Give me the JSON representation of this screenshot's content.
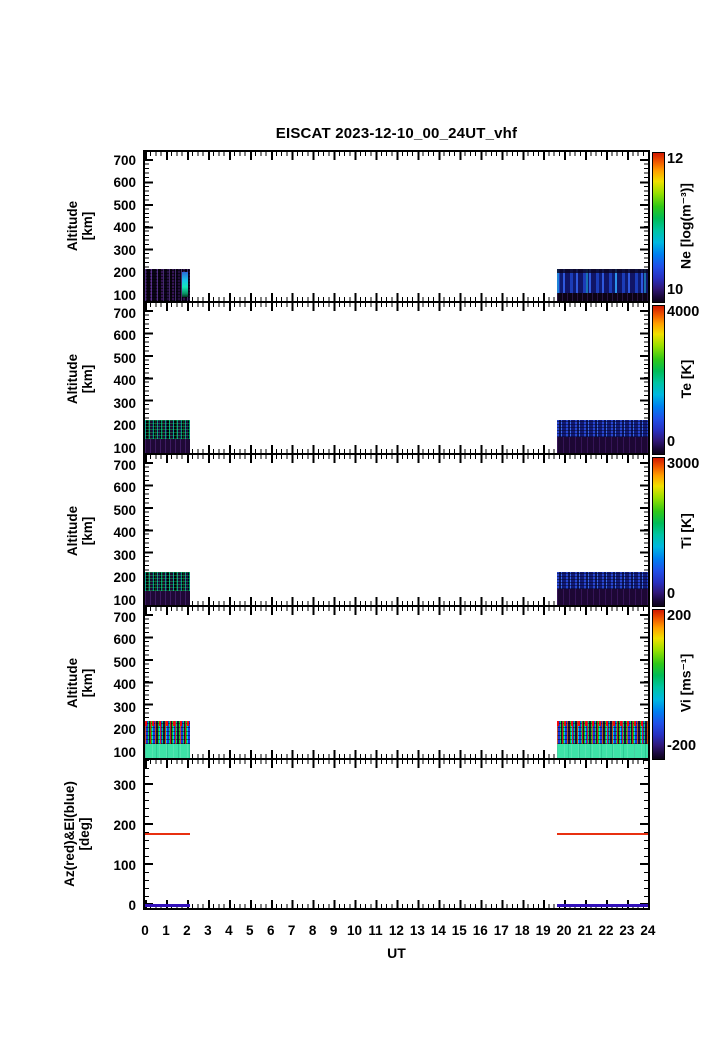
{
  "title": "EISCAT 2023-12-10_00_24UT_vhf",
  "x_axis": {
    "label": "UT",
    "ticks": [
      "0",
      "1",
      "2",
      "3",
      "4",
      "5",
      "6",
      "7",
      "8",
      "9",
      "10",
      "11",
      "12",
      "13",
      "14",
      "15",
      "16",
      "17",
      "18",
      "19",
      "20",
      "21",
      "22",
      "23",
      "24"
    ]
  },
  "axes": {
    "alt_ticks": [
      "700",
      "600",
      "500",
      "400",
      "300",
      "200",
      "100"
    ],
    "azel_ticks": [
      "300",
      "200",
      "100",
      "0"
    ]
  },
  "panels": [
    {
      "id": "ne",
      "ylabel1": "Altitude",
      "ylabel2": "[km]",
      "cbar": {
        "label": "Ne [log(m⁻³)]",
        "max": "12",
        "min": "10"
      }
    },
    {
      "id": "te",
      "ylabel1": "Altitude",
      "ylabel2": "[km]",
      "cbar": {
        "label": "Te [K]",
        "max": "4000",
        "min": "0"
      }
    },
    {
      "id": "ti",
      "ylabel1": "Altitude",
      "ylabel2": "[km]",
      "cbar": {
        "label": "Ti [K]",
        "max": "3000",
        "min": "0"
      }
    },
    {
      "id": "vi",
      "ylabel1": "Altitude",
      "ylabel2": "[km]",
      "cbar": {
        "label": "Vi [ms⁻¹]",
        "max": "200",
        "min": "-200"
      }
    },
    {
      "id": "azel",
      "ylabel1": "Az(red)&El(blue)",
      "ylabel2": "[deg]"
    }
  ],
  "colors": {
    "az_line": "#e83010",
    "el_line": "#3311bb",
    "vi_low_band_teal": "#3ee3a7",
    "colorbar_top": "#d01800",
    "colorbar_bottom": "#0c0418"
  },
  "chart_data": [
    {
      "type": "heatmap",
      "name": "Ne",
      "title": "EISCAT 2023-12-10_00_24UT_vhf",
      "xlabel": "UT",
      "xlim": [
        0,
        24
      ],
      "ylabel": "Altitude [km]",
      "ylim": [
        75,
        720
      ],
      "y_ticks": [
        100,
        200,
        300,
        400,
        500,
        600,
        700
      ],
      "colorbar": {
        "label": "Ne [log(m⁻³)]",
        "min": 10,
        "max": 12
      },
      "data_coverage_ut": [
        [
          0,
          2.2
        ],
        [
          19.6,
          24
        ]
      ],
      "data_altitude_km": [
        75,
        210
      ],
      "values_note": "0-2.2 UT: mostly near-background 10 (dark purple/black) with bright cyan-green column ~11.3 near 1.9-2.1 UT below 200 km; 19.6-24 UT: blue ~10.5-11 with brighter vertical streaks and dark band below 100 km"
    },
    {
      "type": "heatmap",
      "name": "Te",
      "xlabel": "UT",
      "xlim": [
        0,
        24
      ],
      "ylabel": "Altitude [km]",
      "ylim": [
        75,
        720
      ],
      "y_ticks": [
        100,
        200,
        300,
        400,
        500,
        600,
        700
      ],
      "colorbar": {
        "label": "Te [K]",
        "min": 0,
        "max": 4000
      },
      "data_coverage_ut": [
        [
          0,
          2.2
        ],
        [
          19.6,
          24
        ]
      ],
      "data_altitude_km": [
        75,
        210
      ],
      "values_note": "low Te ~0-500 K (dark purple) below ~140 km; noisy speckled 500-2500 K (blue/cyan/green specks) in 140-210 km band"
    },
    {
      "type": "heatmap",
      "name": "Ti",
      "xlabel": "UT",
      "xlim": [
        0,
        24
      ],
      "ylabel": "Altitude [km]",
      "ylim": [
        75,
        720
      ],
      "y_ticks": [
        100,
        200,
        300,
        400,
        500,
        600,
        700
      ],
      "colorbar": {
        "label": "Ti [K]",
        "min": 0,
        "max": 3000
      },
      "data_coverage_ut": [
        [
          0,
          2.2
        ],
        [
          19.6,
          24
        ]
      ],
      "data_altitude_km": [
        75,
        210
      ],
      "values_note": "low Ti ~0-400 K (dark purple) below ~140 km; noisy speckled 400-2000 K (blue/cyan specks) in 140-210 km band"
    },
    {
      "type": "heatmap",
      "name": "Vi",
      "xlabel": "UT",
      "xlim": [
        0,
        24
      ],
      "ylabel": "Altitude [km]",
      "ylim": [
        75,
        720
      ],
      "y_ticks": [
        100,
        200,
        300,
        400,
        500,
        600,
        700
      ],
      "colorbar": {
        "label": "Vi [ms⁻¹]",
        "min": -200,
        "max": 200
      },
      "data_coverage_ut": [
        [
          0,
          2.2
        ],
        [
          19.6,
          24
        ]
      ],
      "data_altitude_km": [
        75,
        210
      ],
      "values_note": "120-210 km: noisy multicolour speckle spanning full -200..+200 range (red/blue/green/black); 75-120 km: uniform teal band near ~-30 ms⁻¹"
    },
    {
      "type": "line",
      "name": "Az & El pointing",
      "xlabel": "UT",
      "xlim": [
        0,
        24
      ],
      "ylabel": "Az(red)&El(blue) [deg]",
      "ylim": [
        0,
        370
      ],
      "y_ticks": [
        0,
        100,
        200,
        300
      ],
      "series": [
        {
          "name": "Az (red)",
          "color": "#e83010",
          "value_deg": 180,
          "intervals_ut": [
            [
              0,
              2.2
            ],
            [
              19.7,
              24
            ]
          ]
        },
        {
          "name": "El (blue)",
          "color": "#3311bb",
          "value_deg": 0,
          "intervals_ut": [
            [
              0,
              2.2
            ],
            [
              19.7,
              24
            ]
          ]
        }
      ]
    }
  ]
}
